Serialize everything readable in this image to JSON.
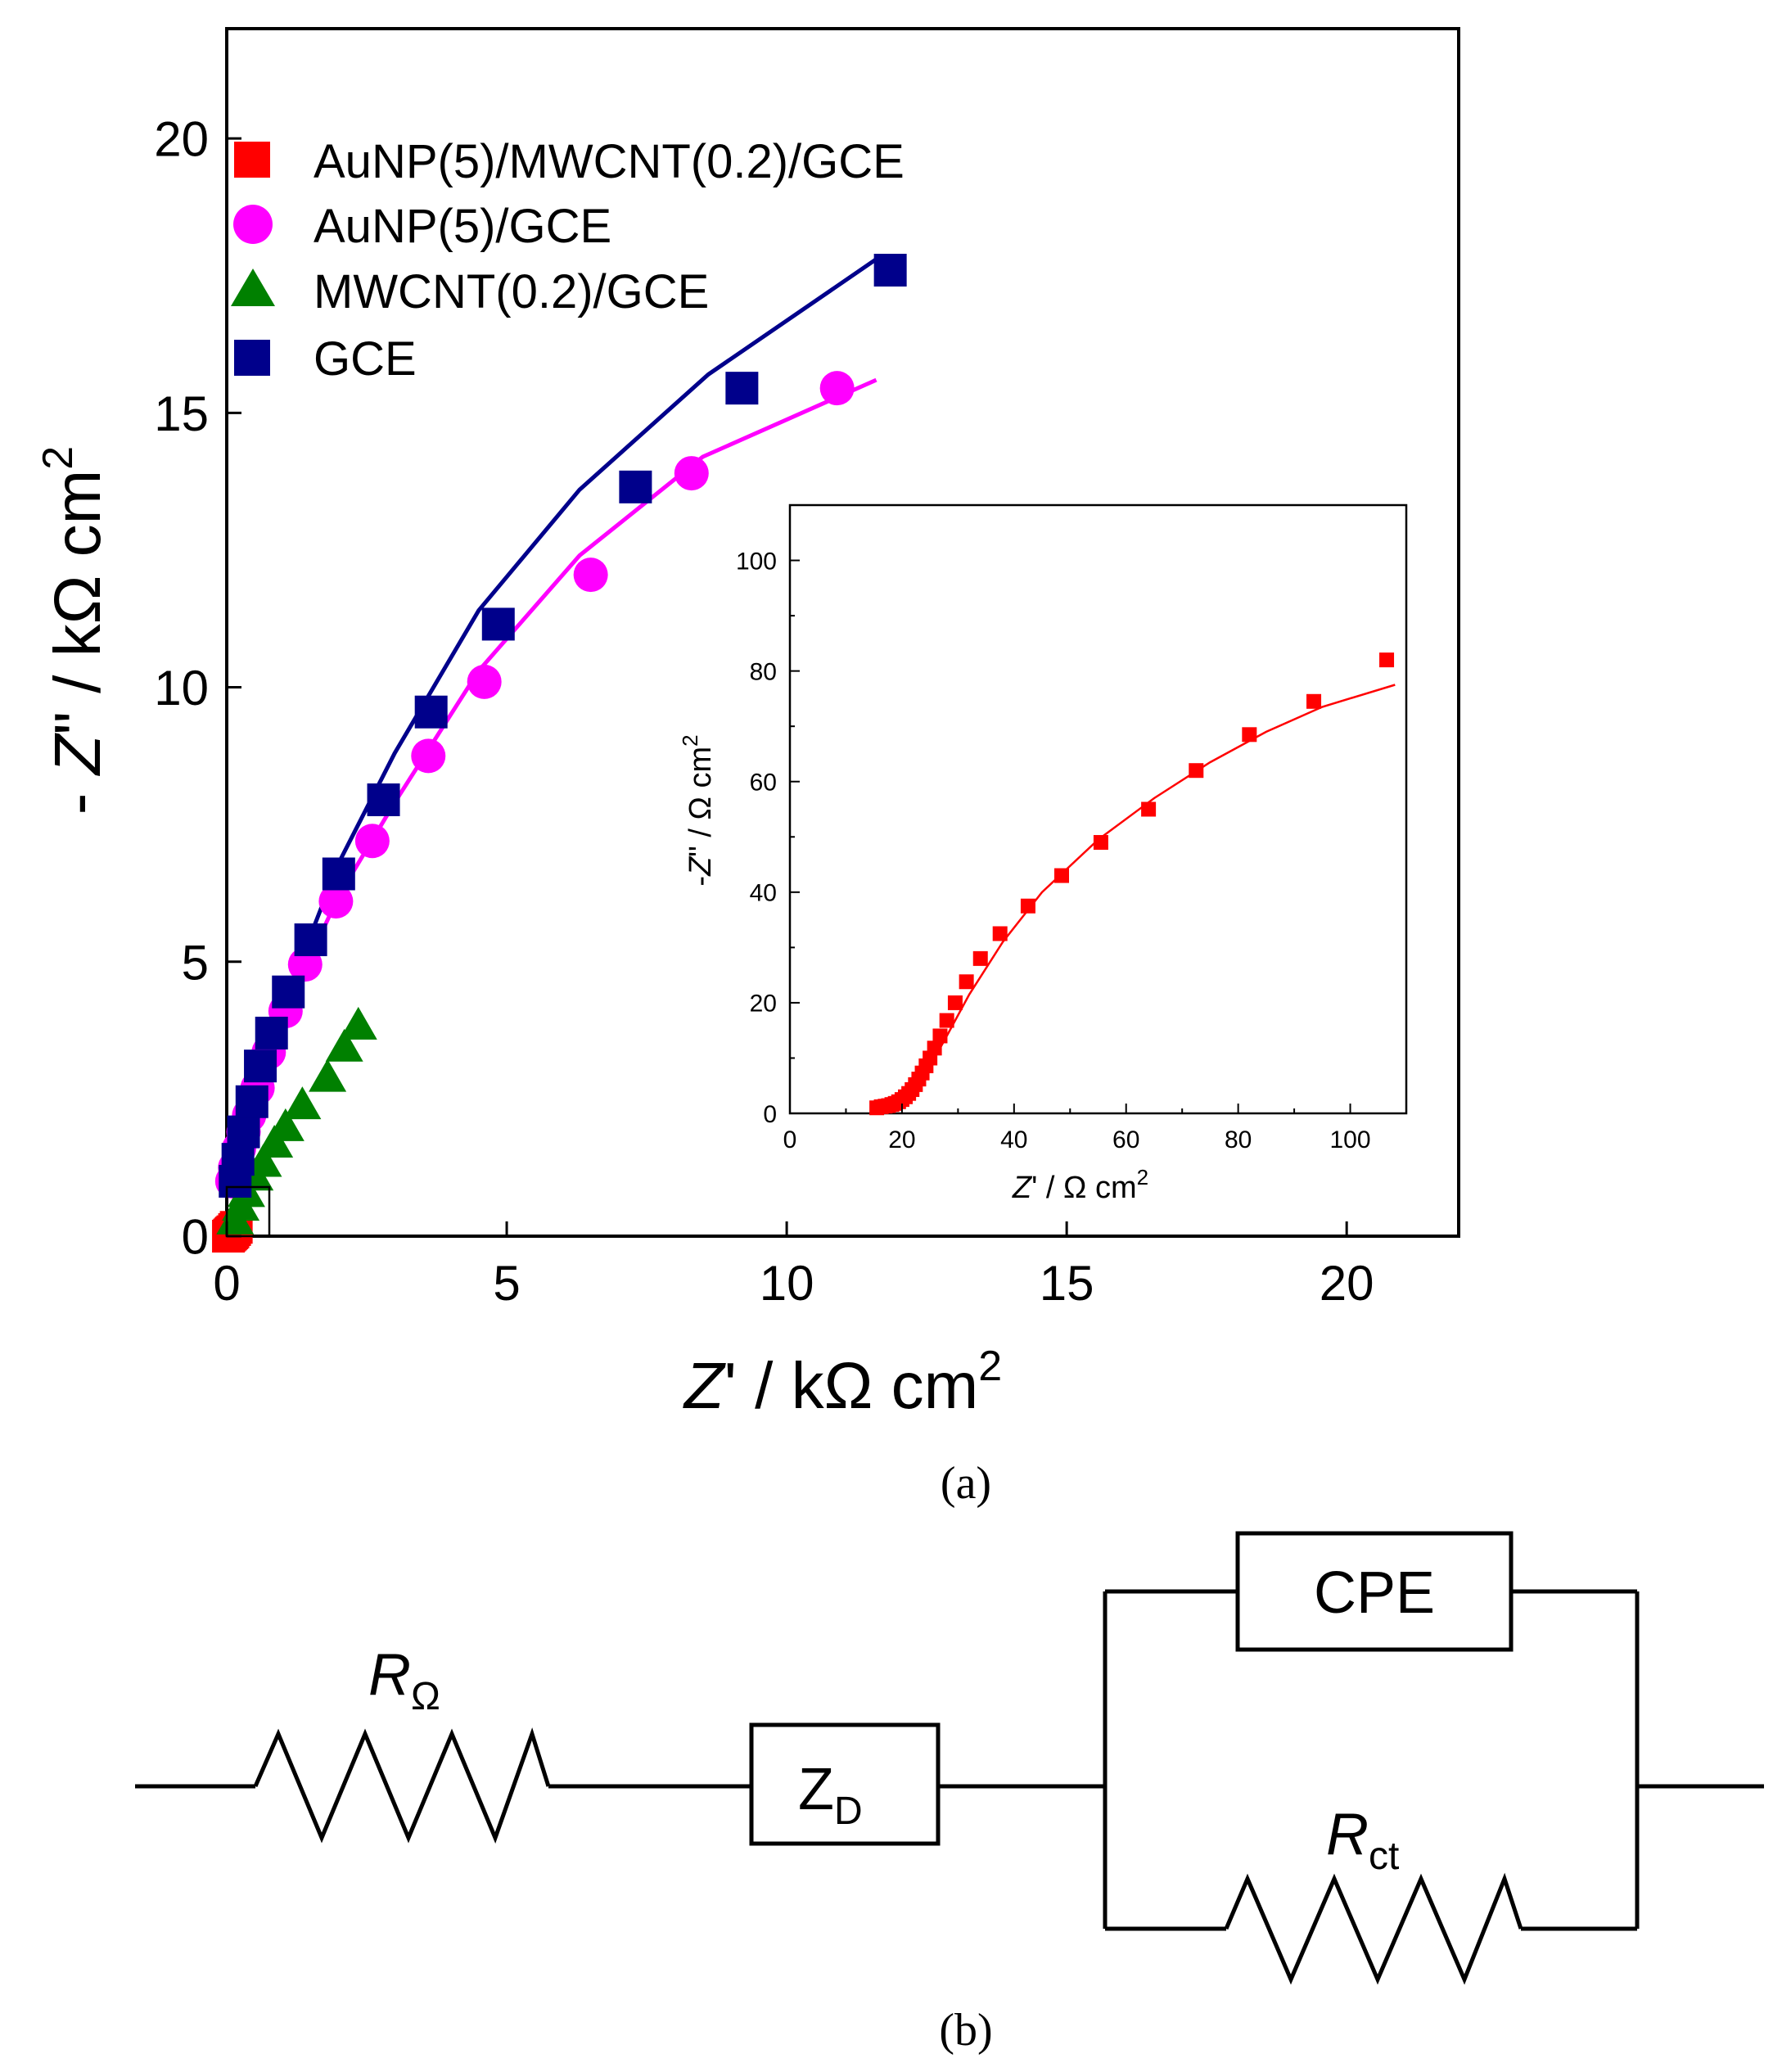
{
  "chart_data": [
    {
      "panel": "(a)",
      "type": "scatter",
      "title": "",
      "xlabel": "Z' / kΩ cm2",
      "ylabel": "- Z\" / kΩ cm2",
      "xlim": [
        0,
        22
      ],
      "ylim": [
        0,
        22
      ],
      "xticks": [
        0,
        5,
        10,
        15,
        20
      ],
      "yticks": [
        0,
        5,
        10,
        15,
        20
      ],
      "legend_position": "top-left",
      "series": [
        {
          "name": "AuNP(5)/MWCNT(0.2)/GCE",
          "color": "#ff0000",
          "marker": "square",
          "x": [
            0.03,
            0.05,
            0.07,
            0.09,
            0.11,
            0.14,
            0.17
          ],
          "y": [
            0.0,
            0.02,
            0.04,
            0.06,
            0.08,
            0.12,
            0.16
          ]
        },
        {
          "name": "AuNP(5)/GCE",
          "color": "#ff00ff",
          "marker": "circle",
          "x": [
            0.1,
            0.15,
            0.22,
            0.3,
            0.4,
            0.55,
            0.75,
            1.05,
            1.4,
            1.95,
            2.6,
            3.6,
            4.6,
            6.5,
            8.3,
            10.9
          ],
          "y": [
            1.0,
            1.25,
            1.6,
            1.9,
            2.2,
            2.7,
            3.35,
            4.1,
            4.95,
            6.1,
            7.2,
            8.75,
            10.1,
            12.05,
            13.9,
            15.45
          ],
          "fit": {
            "x": [
              0.0,
              0.4,
              1.0,
              2.0,
              3.0,
              4.5,
              6.3,
              8.5,
              11.6
            ],
            "y": [
              0.9,
              2.3,
              4.0,
              6.2,
              7.9,
              10.3,
              12.4,
              14.2,
              15.6
            ]
          }
        },
        {
          "name": "MWCNT(0.2)/GCE",
          "color": "#008000",
          "marker": "triangle",
          "x": [
            0.15,
            0.25,
            0.35,
            0.5,
            0.65,
            0.85,
            1.05,
            1.35,
            1.8,
            2.1,
            2.35
          ],
          "y": [
            0.3,
            0.55,
            0.8,
            1.1,
            1.35,
            1.7,
            2.0,
            2.4,
            2.9,
            3.45,
            3.85
          ]
        },
        {
          "name": "GCE",
          "color": "#00008b",
          "marker": "square",
          "x": [
            0.15,
            0.2,
            0.3,
            0.45,
            0.6,
            0.8,
            1.1,
            1.5,
            2.0,
            2.8,
            3.65,
            4.85,
            7.3,
            9.2,
            11.85
          ],
          "y": [
            1.0,
            1.4,
            1.9,
            2.45,
            3.1,
            3.7,
            4.45,
            5.4,
            6.6,
            7.95,
            9.55,
            11.15,
            13.65,
            15.45,
            17.6
          ],
          "fit": {
            "x": [
              0.0,
              0.5,
              1.2,
              2.0,
              3.0,
              4.5,
              6.3,
              8.6,
              11.6
            ],
            "y": [
              0.8,
              2.8,
              4.7,
              6.8,
              8.8,
              11.4,
              13.6,
              15.7,
              17.8
            ]
          }
        }
      ]
    },
    {
      "panel": "inset",
      "type": "scatter",
      "title": "",
      "xlabel": "Z' / Ω cm2",
      "ylabel": "-Z\" / Ω cm2",
      "xlim": [
        0,
        110
      ],
      "ylim": [
        0,
        110
      ],
      "xticks": [
        0,
        20,
        40,
        60,
        80,
        100
      ],
      "yticks": [
        0,
        20,
        40,
        60,
        80,
        100
      ],
      "series": [
        {
          "name": "AuNP(5)/MWCNT(0.2)/GCE",
          "color": "#ff0000",
          "marker": "square",
          "x": [
            15.5,
            16.3,
            17.0,
            17.6,
            18.2,
            18.8,
            19.4,
            20.0,
            20.6,
            21.2,
            21.8,
            22.4,
            23.0,
            23.6,
            24.3,
            25.0,
            25.8,
            26.8,
            28.0,
            29.5,
            31.5,
            34.0,
            37.5,
            42.5,
            48.5,
            55.5,
            64.0,
            72.5,
            82.0,
            93.5,
            106.5
          ],
          "y": [
            1.0,
            1.2,
            1.3,
            1.4,
            1.6,
            1.8,
            2.1,
            2.5,
            3.0,
            3.6,
            4.3,
            5.2,
            6.2,
            7.3,
            8.6,
            10.0,
            11.8,
            14.0,
            16.8,
            20.0,
            23.8,
            28.0,
            32.5,
            37.5,
            43.0,
            49.0,
            55.0,
            62.0,
            68.5,
            74.5,
            82.0
          ],
          "fit": {
            "x": [
              14.5,
              18.0,
              20.0,
              22.0,
              25.0,
              28.0,
              32.0,
              38.0,
              45.0,
              55.0,
              65.0,
              75.0,
              85.0,
              95.0,
              108.0
            ],
            "y": [
              0.0,
              0.8,
              2.0,
              4.0,
              8.5,
              14.0,
              21.5,
              31.0,
              40.0,
              49.5,
              57.0,
              63.5,
              69.0,
              73.5,
              77.5
            ]
          }
        }
      ]
    }
  ],
  "labels": {
    "panel_a": "(a)",
    "panel_b": "(b)"
  },
  "axis_text": {
    "main_x_pre": "Z",
    "main_x_post": "' / kΩ cm",
    "main_x_sup": "2",
    "main_y_pre": "- ",
    "main_y_z": "Z",
    "main_y_post": "\" / kΩ cm",
    "main_y_sup": "2",
    "inset_x_pre": "Z",
    "inset_x_post": "' / Ω cm",
    "inset_x_sup": "2",
    "inset_y_pre": "-",
    "inset_y_z": "Z",
    "inset_y_post": "\" / Ω cm",
    "inset_y_sup": "2"
  },
  "circuit": {
    "r_omega_main": "R",
    "r_omega_sub": "Ω",
    "zd_main": "Z",
    "zd_sub": "D",
    "cpe": "CPE",
    "rct_main": "R",
    "rct_sub": "ct"
  }
}
